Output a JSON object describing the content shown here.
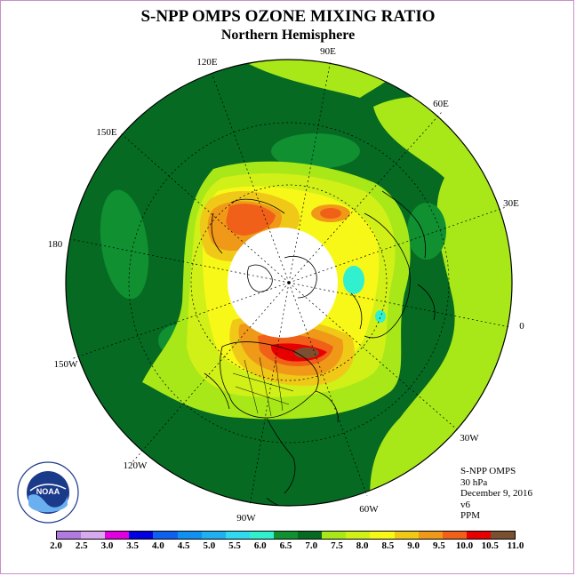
{
  "title": "S-NPP OMPS OZONE MIXING RATIO",
  "subtitle": "Northern Hemisphere",
  "longitude_labels": [
    "90E",
    "60E",
    "30E",
    "0",
    "30W",
    "60W",
    "90W",
    "120W",
    "150W",
    "180",
    "150E",
    "120E"
  ],
  "info": {
    "instrument": "S-NPP OMPS",
    "level": "30 hPa",
    "date": "December 9, 2016",
    "version": "v6",
    "units": "PPM"
  },
  "colorbar": {
    "ticks": [
      "2.0",
      "2.5",
      "3.0",
      "3.5",
      "4.0",
      "4.5",
      "5.0",
      "5.5",
      "6.0",
      "6.5",
      "7.0",
      "7.5",
      "8.0",
      "8.5",
      "9.0",
      "9.5",
      "10.0",
      "10.5",
      "11.0"
    ],
    "colors": [
      "#b07ae0",
      "#d8a8f0",
      "#e000e0",
      "#0000e0",
      "#1060f0",
      "#1090f0",
      "#20b0f0",
      "#30d8f0",
      "#30f0d0",
      "#109030",
      "#066a22",
      "#a8e818",
      "#d0f018",
      "#f8f818",
      "#f0c818",
      "#f09818",
      "#f06018",
      "#e80000",
      "#7a5030"
    ]
  },
  "colors": {
    "ocean_dark": "#066a22",
    "mid_green": "#109030",
    "lime": "#a8e818",
    "yellow_green": "#d0f018",
    "yellow": "#f8f818",
    "gold": "#f0c818",
    "orange": "#f09818",
    "red_orange": "#f06018",
    "red": "#e80000",
    "brown": "#7a5030",
    "cyan": "#30f0d0",
    "frame": "#c890c8"
  },
  "logo": {
    "text": "NOAA",
    "ring_text": "NATIONAL OCEANIC AND ATMOSPHERIC ADMINISTRATION · U.S. DEPARTMENT OF COMMERCE"
  }
}
